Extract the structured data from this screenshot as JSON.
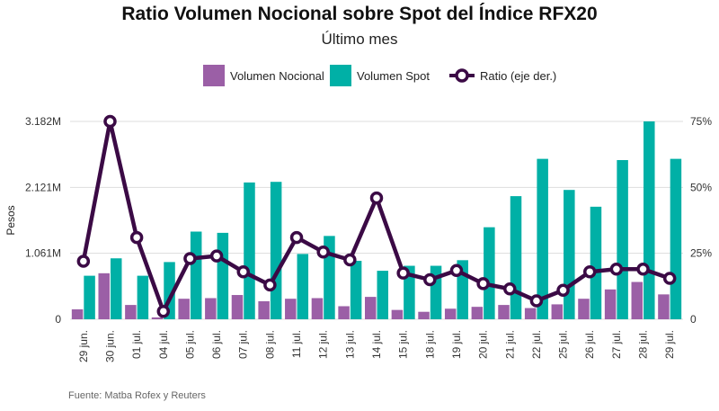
{
  "chart_data": {
    "type": "bar",
    "title": "Ratio Volumen Nocional sobre Spot del Índice RFX20",
    "subtitle": "Último mes",
    "ylabel": "Pesos",
    "source": "Fuente: Matba Rofex y Reuters",
    "categories": [
      "29 jun.",
      "30 jun.",
      "01 jul.",
      "04 jul.",
      "05 jul.",
      "06 jul.",
      "07 jul.",
      "08 jul.",
      "11 jul.",
      "12 jul.",
      "13 jul.",
      "14 jul.",
      "15 jul.",
      "18 jul.",
      "19 jul.",
      "20 jul.",
      "21 jul.",
      "22 jul.",
      "25 jul.",
      "26 jul.",
      "27 jul.",
      "28 jul.",
      "29 jul."
    ],
    "left_axis": {
      "ticks": [
        0,
        1061,
        2121,
        3182
      ],
      "tick_labels": [
        "0",
        "1.061M",
        "2.121M",
        "3.182M"
      ],
      "ylim": [
        0,
        3182
      ]
    },
    "right_axis": {
      "ticks": [
        0,
        25,
        50,
        75
      ],
      "tick_labels": [
        "0",
        "25%",
        "50%",
        "75%"
      ],
      "ylim": [
        0,
        75
      ]
    },
    "legend_position": "top-center",
    "series": [
      {
        "name": "Volumen Nocional",
        "color": "#9b5fa6",
        "axis": "left",
        "values": [
          160,
          740,
          230,
          30,
          330,
          340,
          390,
          290,
          330,
          340,
          210,
          360,
          150,
          120,
          170,
          200,
          230,
          180,
          240,
          330,
          480,
          600,
          400
        ]
      },
      {
        "name": "Volumen Spot",
        "color": "#00b0a6",
        "axis": "left",
        "values": [
          700,
          980,
          700,
          920,
          1410,
          1390,
          2200,
          2210,
          1050,
          1340,
          940,
          780,
          860,
          860,
          950,
          1480,
          1980,
          2580,
          2080,
          1810,
          2560,
          3182,
          2580
        ]
      },
      {
        "name": "Ratio (eje der.)",
        "color": "#3b0a45",
        "axis": "right",
        "type": "line",
        "values": [
          22,
          75,
          31,
          3,
          23,
          24,
          18,
          13,
          31,
          25.5,
          22.5,
          46,
          17.5,
          15,
          18.5,
          13.5,
          11.5,
          7,
          11,
          18,
          19,
          19,
          15.5
        ]
      }
    ]
  }
}
